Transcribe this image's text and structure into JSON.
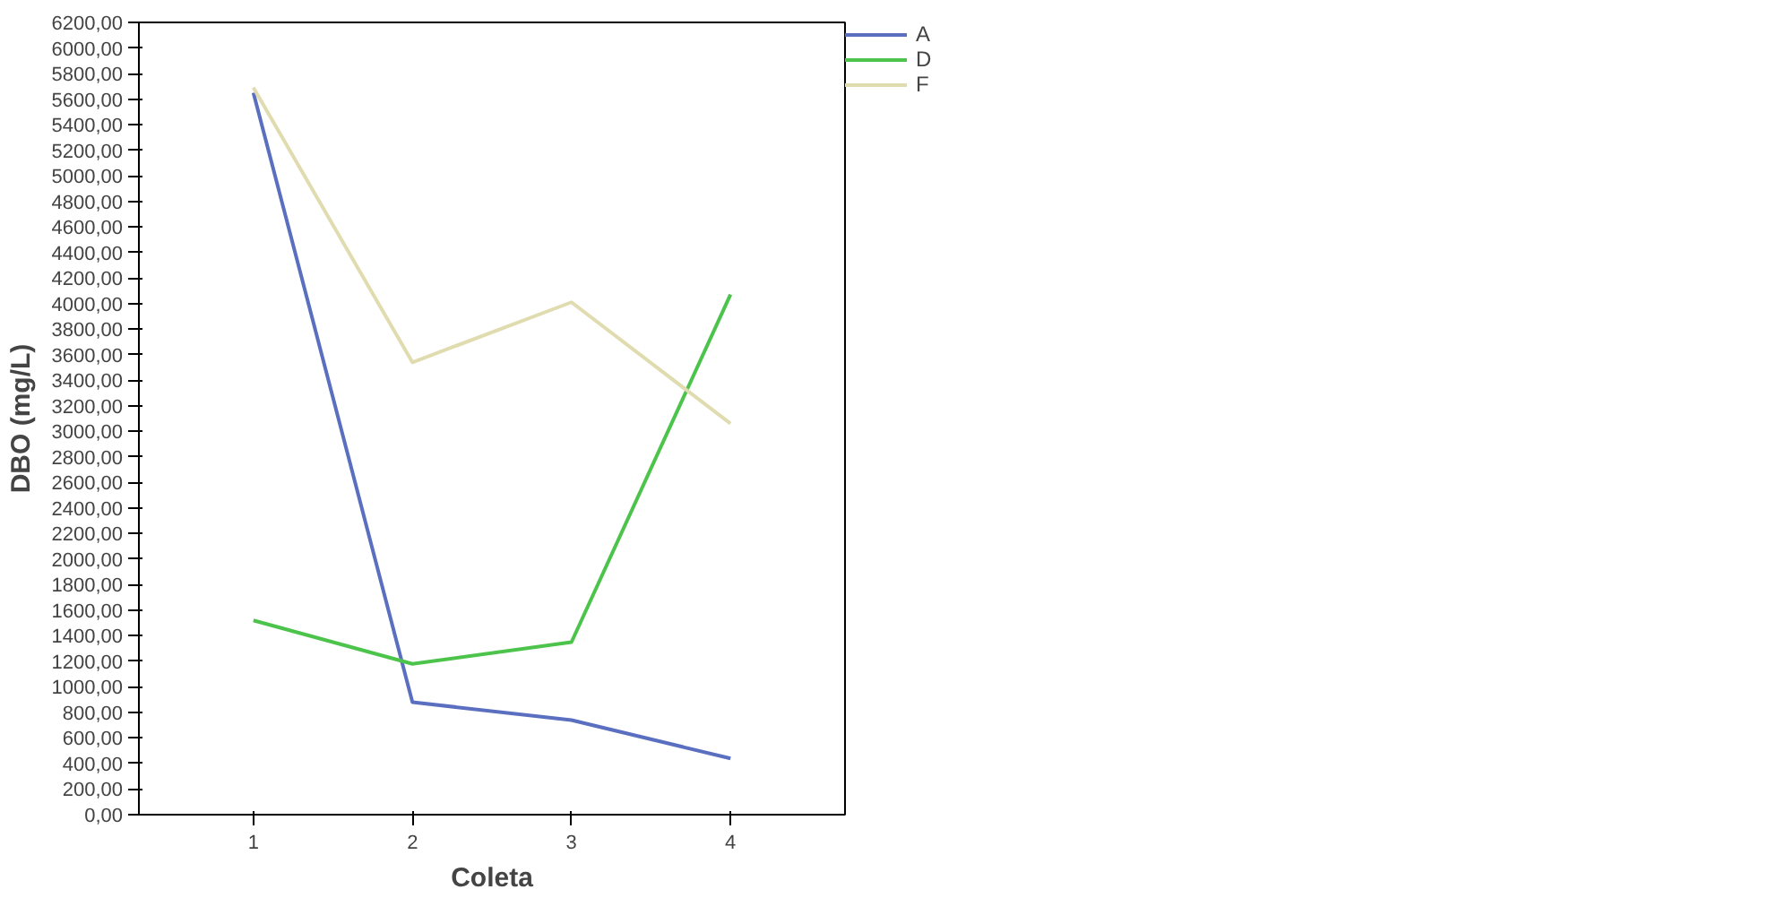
{
  "chart_data": {
    "type": "line",
    "xlabel": "Coleta",
    "ylabel": "DBO (mg/L)",
    "x": [
      1,
      2,
      3,
      4
    ],
    "xlim": [
      0.28,
      4.72
    ],
    "xticks": [
      1,
      2,
      3,
      4
    ],
    "ylim": [
      0,
      6200
    ],
    "yticks": [
      {
        "value": 0,
        "label": "0,00"
      },
      {
        "value": 200,
        "label": "200,00"
      },
      {
        "value": 400,
        "label": "400,00"
      },
      {
        "value": 600,
        "label": "600,00"
      },
      {
        "value": 800,
        "label": "800,00"
      },
      {
        "value": 1000,
        "label": "1000,00"
      },
      {
        "value": 1200,
        "label": "1200,00"
      },
      {
        "value": 1400,
        "label": "1400,00"
      },
      {
        "value": 1600,
        "label": "1600,00"
      },
      {
        "value": 1800,
        "label": "1800,00"
      },
      {
        "value": 2000,
        "label": "2000,00"
      },
      {
        "value": 2200,
        "label": "2200,00"
      },
      {
        "value": 2400,
        "label": "2400,00"
      },
      {
        "value": 2600,
        "label": "2600,00"
      },
      {
        "value": 2800,
        "label": "2800,00"
      },
      {
        "value": 3000,
        "label": "3000,00"
      },
      {
        "value": 3200,
        "label": "3200,00"
      },
      {
        "value": 3400,
        "label": "3400,00"
      },
      {
        "value": 3600,
        "label": "3600,00"
      },
      {
        "value": 3800,
        "label": "3800,00"
      },
      {
        "value": 4000,
        "label": "4000,00"
      },
      {
        "value": 4200,
        "label": "4200,00"
      },
      {
        "value": 4400,
        "label": "4400,00"
      },
      {
        "value": 4600,
        "label": "4600,00"
      },
      {
        "value": 4800,
        "label": "4800,00"
      },
      {
        "value": 5000,
        "label": "5000,00"
      },
      {
        "value": 5200,
        "label": "5200,00"
      },
      {
        "value": 5400,
        "label": "5400,00"
      },
      {
        "value": 5600,
        "label": "5600,00"
      },
      {
        "value": 5800,
        "label": "5800,00"
      },
      {
        "value": 6000,
        "label": "6000,00"
      },
      {
        "value": 6200,
        "label": "6200,00"
      }
    ],
    "legend": "top right",
    "grid": false,
    "series": [
      {
        "name": "A",
        "color": "#5a6fc0",
        "values": [
          5650,
          880,
          740,
          440
        ]
      },
      {
        "name": "D",
        "color": "#4cc44c",
        "values": [
          1520,
          1180,
          1350,
          4070
        ]
      },
      {
        "name": "F",
        "color": "#e0dcb0",
        "values": [
          5690,
          3540,
          4010,
          3060
        ]
      }
    ]
  }
}
